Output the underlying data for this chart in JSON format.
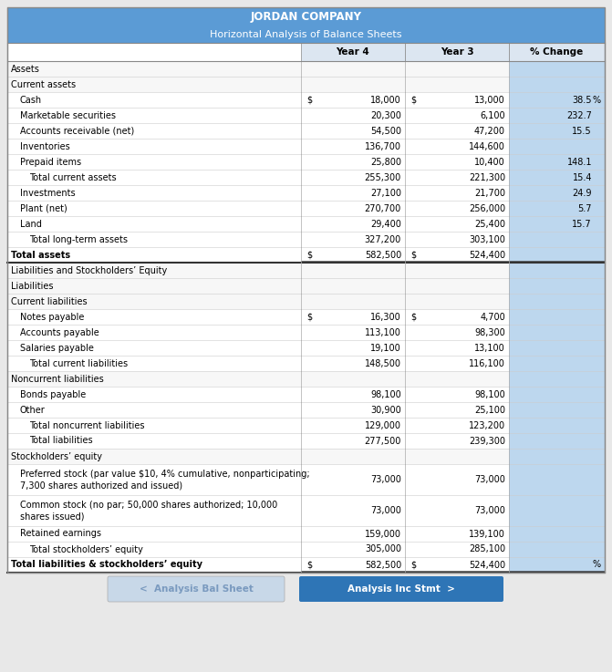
{
  "title1": "JORDAN COMPANY",
  "title2": "Horizontal Analysis of Balance Sheets",
  "header_bg": "#5b9bd5",
  "col_header_bg": "#dce6f1",
  "blue_cell_bg": "#bdd7ee",
  "rows": [
    {
      "label": "Assets",
      "year4": "",
      "year3": "",
      "pct": "",
      "indent": 0,
      "bold": false,
      "section": true,
      "dollar4": false,
      "dollar3": false,
      "pct_sign": false,
      "thick_bottom": false,
      "tall": false
    },
    {
      "label": "Current assets",
      "year4": "",
      "year3": "",
      "pct": "",
      "indent": 0,
      "bold": false,
      "section": true,
      "dollar4": false,
      "dollar3": false,
      "pct_sign": false,
      "thick_bottom": false,
      "tall": false
    },
    {
      "label": "Cash",
      "year4": "18,000",
      "year3": "13,000",
      "pct": "38.5",
      "indent": 1,
      "bold": false,
      "section": false,
      "dollar4": true,
      "dollar3": true,
      "pct_sign": true,
      "thick_bottom": false,
      "tall": false
    },
    {
      "label": "Marketable securities",
      "year4": "20,300",
      "year3": "6,100",
      "pct": "232.7",
      "indent": 1,
      "bold": false,
      "section": false,
      "dollar4": false,
      "dollar3": false,
      "pct_sign": false,
      "thick_bottom": false,
      "tall": false
    },
    {
      "label": "Accounts receivable (net)",
      "year4": "54,500",
      "year3": "47,200",
      "pct": "15.5",
      "indent": 1,
      "bold": false,
      "section": false,
      "dollar4": false,
      "dollar3": false,
      "pct_sign": false,
      "thick_bottom": false,
      "tall": false
    },
    {
      "label": "Inventories",
      "year4": "136,700",
      "year3": "144,600",
      "pct": "",
      "indent": 1,
      "bold": false,
      "section": false,
      "dollar4": false,
      "dollar3": false,
      "pct_sign": false,
      "thick_bottom": false,
      "tall": false
    },
    {
      "label": "Prepaid items",
      "year4": "25,800",
      "year3": "10,400",
      "pct": "148.1",
      "indent": 1,
      "bold": false,
      "section": false,
      "dollar4": false,
      "dollar3": false,
      "pct_sign": false,
      "thick_bottom": false,
      "tall": false
    },
    {
      "label": "Total current assets",
      "year4": "255,300",
      "year3": "221,300",
      "pct": "15.4",
      "indent": 2,
      "bold": false,
      "section": false,
      "dollar4": false,
      "dollar3": false,
      "pct_sign": false,
      "thick_bottom": false,
      "tall": false
    },
    {
      "label": "Investments",
      "year4": "27,100",
      "year3": "21,700",
      "pct": "24.9",
      "indent": 1,
      "bold": false,
      "section": false,
      "dollar4": false,
      "dollar3": false,
      "pct_sign": false,
      "thick_bottom": false,
      "tall": false
    },
    {
      "label": "Plant (net)",
      "year4": "270,700",
      "year3": "256,000",
      "pct": "5.7",
      "indent": 1,
      "bold": false,
      "section": false,
      "dollar4": false,
      "dollar3": false,
      "pct_sign": false,
      "thick_bottom": false,
      "tall": false
    },
    {
      "label": "Land",
      "year4": "29,400",
      "year3": "25,400",
      "pct": "15.7",
      "indent": 1,
      "bold": false,
      "section": false,
      "dollar4": false,
      "dollar3": false,
      "pct_sign": false,
      "thick_bottom": false,
      "tall": false
    },
    {
      "label": "Total long-term assets",
      "year4": "327,200",
      "year3": "303,100",
      "pct": "",
      "indent": 2,
      "bold": false,
      "section": false,
      "dollar4": false,
      "dollar3": false,
      "pct_sign": false,
      "thick_bottom": false,
      "tall": false
    },
    {
      "label": "Total assets",
      "year4": "582,500",
      "year3": "524,400",
      "pct": "",
      "indent": 0,
      "bold": true,
      "section": false,
      "dollar4": true,
      "dollar3": true,
      "pct_sign": false,
      "thick_bottom": true,
      "tall": false
    },
    {
      "label": "Liabilities and Stockholders’ Equity",
      "year4": "",
      "year3": "",
      "pct": "",
      "indent": 0,
      "bold": false,
      "section": true,
      "dollar4": false,
      "dollar3": false,
      "pct_sign": false,
      "thick_bottom": false,
      "tall": false
    },
    {
      "label": "Liabilities",
      "year4": "",
      "year3": "",
      "pct": "",
      "indent": 0,
      "bold": false,
      "section": true,
      "dollar4": false,
      "dollar3": false,
      "pct_sign": false,
      "thick_bottom": false,
      "tall": false
    },
    {
      "label": "Current liabilities",
      "year4": "",
      "year3": "",
      "pct": "",
      "indent": 0,
      "bold": false,
      "section": true,
      "dollar4": false,
      "dollar3": false,
      "pct_sign": false,
      "thick_bottom": false,
      "tall": false
    },
    {
      "label": "Notes payable",
      "year4": "16,300",
      "year3": "4,700",
      "pct": "",
      "indent": 1,
      "bold": false,
      "section": false,
      "dollar4": true,
      "dollar3": true,
      "pct_sign": false,
      "thick_bottom": false,
      "tall": false
    },
    {
      "label": "Accounts payable",
      "year4": "113,100",
      "year3": "98,300",
      "pct": "",
      "indent": 1,
      "bold": false,
      "section": false,
      "dollar4": false,
      "dollar3": false,
      "pct_sign": false,
      "thick_bottom": false,
      "tall": false
    },
    {
      "label": "Salaries payable",
      "year4": "19,100",
      "year3": "13,100",
      "pct": "",
      "indent": 1,
      "bold": false,
      "section": false,
      "dollar4": false,
      "dollar3": false,
      "pct_sign": false,
      "thick_bottom": false,
      "tall": false
    },
    {
      "label": "Total current liabilities",
      "year4": "148,500",
      "year3": "116,100",
      "pct": "",
      "indent": 2,
      "bold": false,
      "section": false,
      "dollar4": false,
      "dollar3": false,
      "pct_sign": false,
      "thick_bottom": false,
      "tall": false
    },
    {
      "label": "Noncurrent liabilities",
      "year4": "",
      "year3": "",
      "pct": "",
      "indent": 0,
      "bold": false,
      "section": true,
      "dollar4": false,
      "dollar3": false,
      "pct_sign": false,
      "thick_bottom": false,
      "tall": false
    },
    {
      "label": "Bonds payable",
      "year4": "98,100",
      "year3": "98,100",
      "pct": "",
      "indent": 1,
      "bold": false,
      "section": false,
      "dollar4": false,
      "dollar3": false,
      "pct_sign": false,
      "thick_bottom": false,
      "tall": false
    },
    {
      "label": "Other",
      "year4": "30,900",
      "year3": "25,100",
      "pct": "",
      "indent": 1,
      "bold": false,
      "section": false,
      "dollar4": false,
      "dollar3": false,
      "pct_sign": false,
      "thick_bottom": false,
      "tall": false
    },
    {
      "label": "Total noncurrent liabilities",
      "year4": "129,000",
      "year3": "123,200",
      "pct": "",
      "indent": 2,
      "bold": false,
      "section": false,
      "dollar4": false,
      "dollar3": false,
      "pct_sign": false,
      "thick_bottom": false,
      "tall": false
    },
    {
      "label": "Total liabilities",
      "year4": "277,500",
      "year3": "239,300",
      "pct": "",
      "indent": 2,
      "bold": false,
      "section": false,
      "dollar4": false,
      "dollar3": false,
      "pct_sign": false,
      "thick_bottom": false,
      "tall": false
    },
    {
      "label": "Stockholders’ equity",
      "year4": "",
      "year3": "",
      "pct": "",
      "indent": 0,
      "bold": false,
      "section": true,
      "dollar4": false,
      "dollar3": false,
      "pct_sign": false,
      "thick_bottom": false,
      "tall": false
    },
    {
      "label": "Preferred stock (par value $10, 4% cumulative, nonparticipating;\n7,300 shares authorized and issued)",
      "year4": "73,000",
      "year3": "73,000",
      "pct": "",
      "indent": 1,
      "bold": false,
      "section": false,
      "dollar4": false,
      "dollar3": false,
      "pct_sign": false,
      "thick_bottom": false,
      "tall": true
    },
    {
      "label": "Common stock (no par; 50,000 shares authorized; 10,000\nshares issued)",
      "year4": "73,000",
      "year3": "73,000",
      "pct": "",
      "indent": 1,
      "bold": false,
      "section": false,
      "dollar4": false,
      "dollar3": false,
      "pct_sign": false,
      "thick_bottom": false,
      "tall": true
    },
    {
      "label": "Retained earnings",
      "year4": "159,000",
      "year3": "139,100",
      "pct": "",
      "indent": 1,
      "bold": false,
      "section": false,
      "dollar4": false,
      "dollar3": false,
      "pct_sign": false,
      "thick_bottom": false,
      "tall": false
    },
    {
      "label": "Total stockholders’ equity",
      "year4": "305,000",
      "year3": "285,100",
      "pct": "",
      "indent": 2,
      "bold": false,
      "section": false,
      "dollar4": false,
      "dollar3": false,
      "pct_sign": false,
      "thick_bottom": false,
      "tall": false
    },
    {
      "label": "Total liabilities & stockholders’ equity",
      "year4": "582,500",
      "year3": "524,400",
      "pct": "",
      "indent": 0,
      "bold": true,
      "section": false,
      "dollar4": true,
      "dollar3": true,
      "pct_sign": false,
      "thick_bottom": true,
      "tall": false,
      "pct_percent": true
    }
  ],
  "btn1_text": "<  Analysis Bal Sheet",
  "btn2_text": "Analysis Inc Stmt  >",
  "btn1_bg": "#c8d8e8",
  "btn2_bg": "#2e75b6",
  "btn1_fg": "#7a9abf",
  "btn2_fg": "#ffffff"
}
